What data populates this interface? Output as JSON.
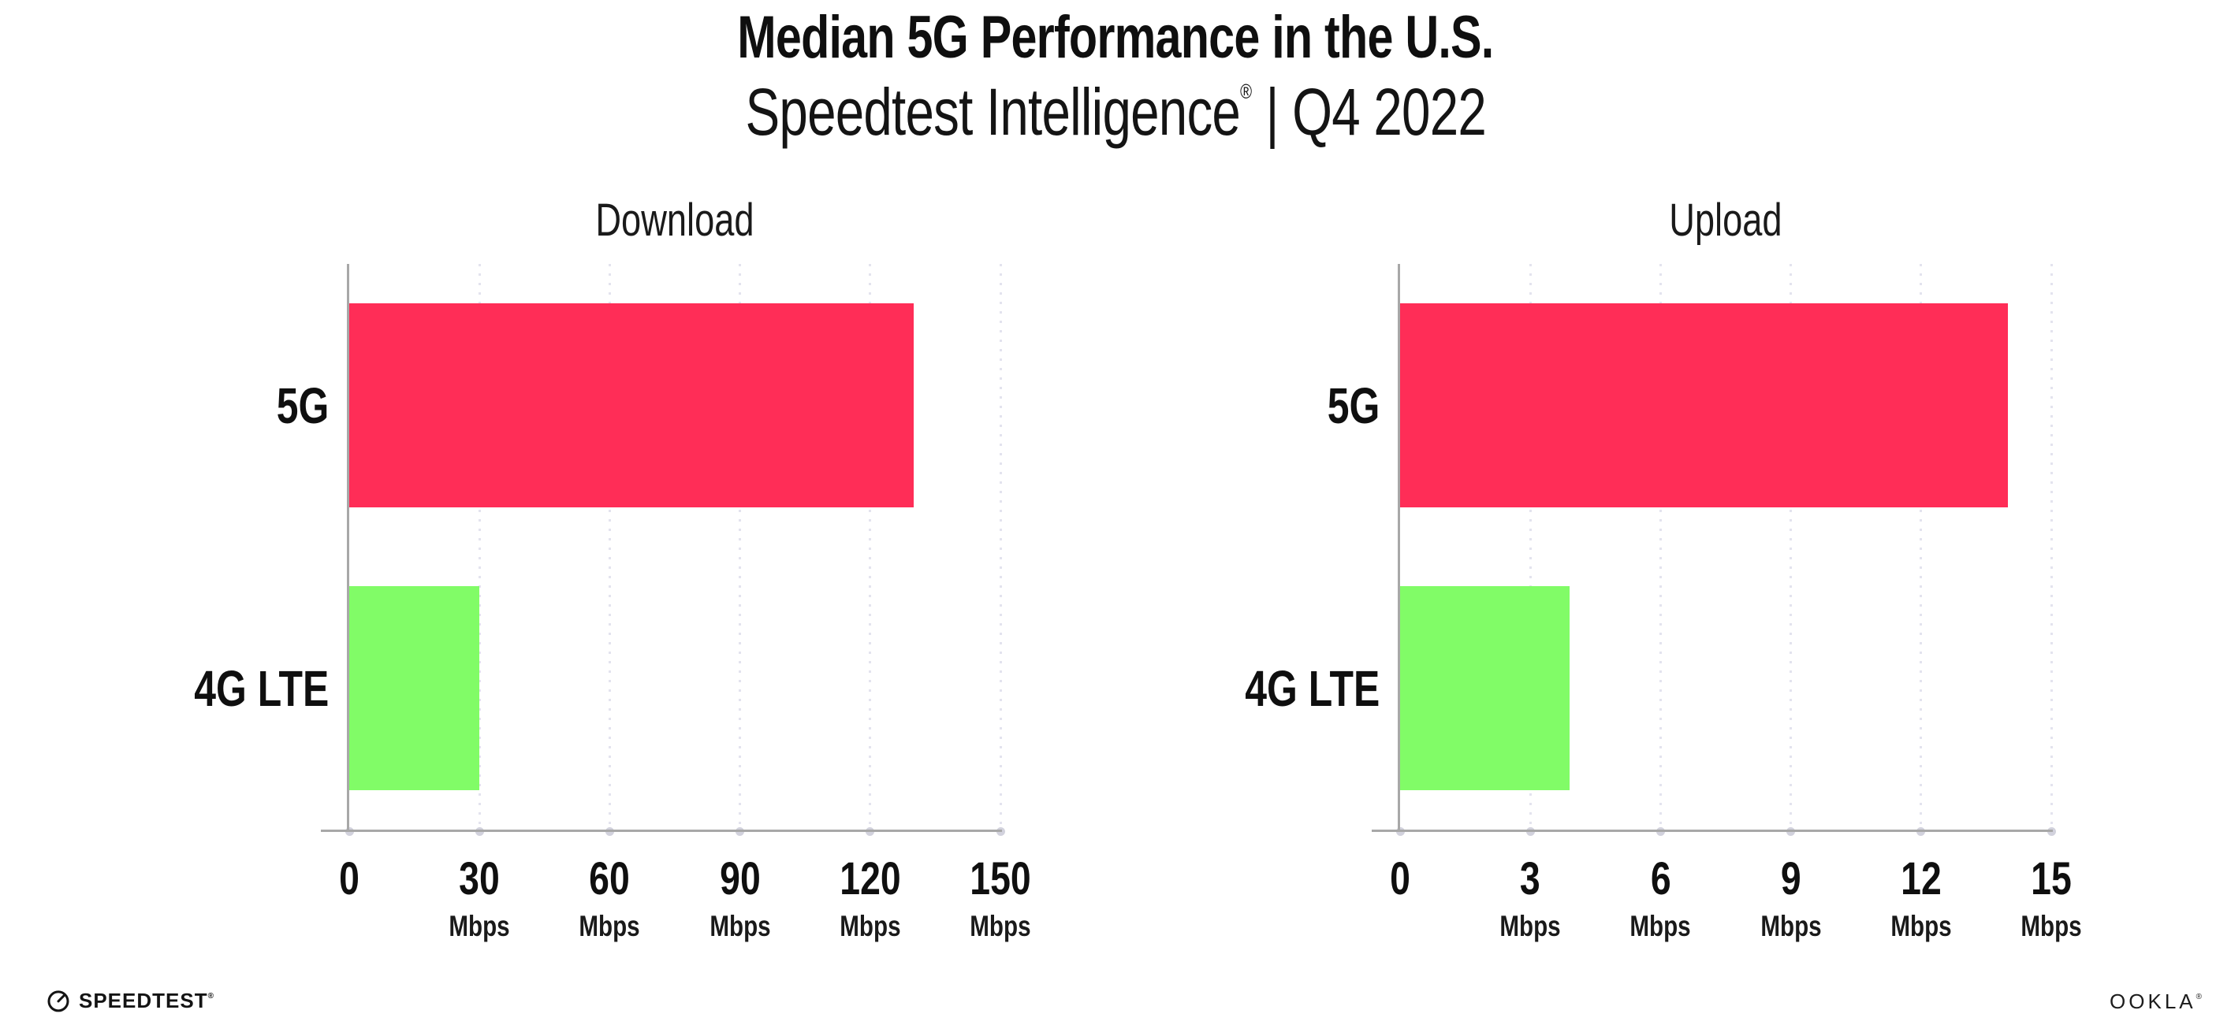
{
  "header": {
    "title": "Median 5G Performance in the U.S.",
    "subtitle_brand": "Speedtest Intelligence",
    "subtitle_reg": "®",
    "subtitle_rest": " | Q4 2022"
  },
  "chart_data": [
    {
      "type": "bar",
      "orientation": "horizontal",
      "title": "Download",
      "categories": [
        "5G",
        "4G LTE"
      ],
      "values": [
        130,
        30
      ],
      "unit": "Mbps",
      "xlim": [
        0,
        150
      ],
      "xticks": [
        0,
        30,
        60,
        90,
        120,
        150
      ],
      "series_colors": [
        "#ff2d57",
        "#81fc67"
      ],
      "grid": "dotted-vertical",
      "legend": "none"
    },
    {
      "type": "bar",
      "orientation": "horizontal",
      "title": "Upload",
      "categories": [
        "5G",
        "4G LTE"
      ],
      "values": [
        14,
        3.9
      ],
      "unit": "Mbps",
      "xlim": [
        0,
        15
      ],
      "xticks": [
        0,
        3,
        6,
        9,
        12,
        15
      ],
      "series_colors": [
        "#ff2d57",
        "#81fc67"
      ],
      "grid": "dotted-vertical",
      "legend": "none"
    }
  ],
  "colors": {
    "bar_5g": "#ff2d57",
    "bar_4g_lte": "#81fc67",
    "gridline": "#e3e3ee",
    "axis": "#a8a8a8",
    "text": "#0f0f0f"
  },
  "footer": {
    "speedtest_logo_text": "SPEEDTEST",
    "speedtest_reg": "®",
    "ookla_logo_text": "OOKLA",
    "ookla_reg": "®"
  }
}
